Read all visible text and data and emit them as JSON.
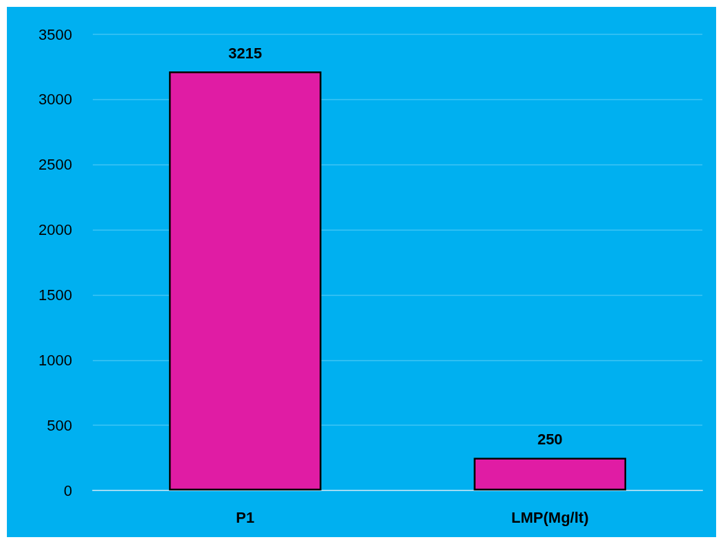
{
  "chart_data": {
    "type": "bar",
    "categories": [
      "P1",
      "LMP(Mg/lt)"
    ],
    "values": [
      3215,
      250
    ],
    "color": "#e01ca4",
    "ylim": [
      0,
      3500
    ],
    "yticks": [
      0,
      500,
      1000,
      1500,
      2000,
      2500,
      3000,
      3500
    ],
    "grid": "y",
    "data_labels": true
  }
}
